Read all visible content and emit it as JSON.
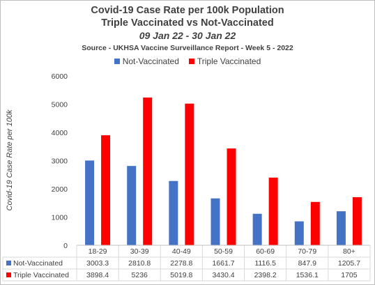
{
  "title": "Covid-19 Case Rate per 100k Population",
  "subtitle": "Triple Vaccinated vs Not-Vaccinated",
  "date_range": "09 Jan 22 - 30 Jan 22",
  "source": "Source - UKHSA Vaccine Surveillance Report - Week 5 - 2022",
  "colors": {
    "not_vaccinated": "#4472c4",
    "triple_vaccinated": "#ff0000"
  },
  "chart_data": {
    "type": "bar",
    "title": "Covid-19 Case Rate per 100k Population",
    "subtitle": "Triple Vaccinated vs Not-Vaccinated",
    "ylabel": "Covid-19 Case Rate per 100k",
    "xlabel": "",
    "ylim": [
      0,
      6000
    ],
    "yticks": [
      "0",
      "1000",
      "2000",
      "3000",
      "4000",
      "5000",
      "6000"
    ],
    "categories": [
      "18-29",
      "30-39",
      "40-49",
      "50-59",
      "60-69",
      "70-79",
      "80+"
    ],
    "legend_position": "top",
    "grid": false,
    "data_table": true,
    "series": [
      {
        "name": "Not-Vaccinated",
        "values": [
          3003.3,
          2810.8,
          2278.8,
          1661.7,
          1116.5,
          847.9,
          1205.7
        ],
        "labels": [
          "3003.3",
          "2810.8",
          "2278.8",
          "1661.7",
          "1116.5",
          "847.9",
          "1205.7"
        ],
        "color": "#4472c4"
      },
      {
        "name": "Triple Vaccinated",
        "values": [
          3898.4,
          5236,
          5019.8,
          3430.4,
          2398.2,
          1536.1,
          1705
        ],
        "labels": [
          "3898.4",
          "5236",
          "5019.8",
          "3430.4",
          "2398.2",
          "1536.1",
          "1705"
        ],
        "color": "#ff0000"
      }
    ]
  }
}
